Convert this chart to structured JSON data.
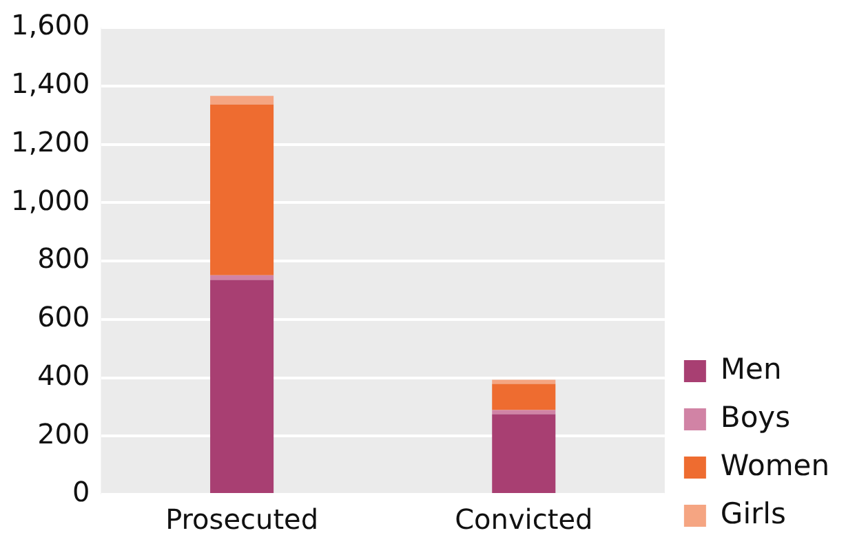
{
  "chart_data": {
    "type": "bar",
    "stacked": true,
    "categories": [
      "Prosecuted",
      "Convicted"
    ],
    "series": [
      {
        "name": "Men",
        "color": "#a83f72",
        "values": [
          735,
          275
        ]
      },
      {
        "name": "Boys",
        "color": "#d183a5",
        "values": [
          16,
          14
        ]
      },
      {
        "name": "Women",
        "color": "#ee6c30",
        "values": [
          585,
          90
        ]
      },
      {
        "name": "Girls",
        "color": "#f5a582",
        "values": [
          30,
          14
        ]
      }
    ],
    "ylim": [
      0,
      1600
    ],
    "yticks": [
      0,
      200,
      400,
      600,
      800,
      {
        "value": 1000,
        "label": "1,000"
      },
      {
        "value": 1200,
        "label": "1,200"
      },
      {
        "value": 1400,
        "label": "1,400"
      },
      {
        "value": 1600,
        "label": "1,600"
      }
    ],
    "grid": "y",
    "legend": "right"
  }
}
